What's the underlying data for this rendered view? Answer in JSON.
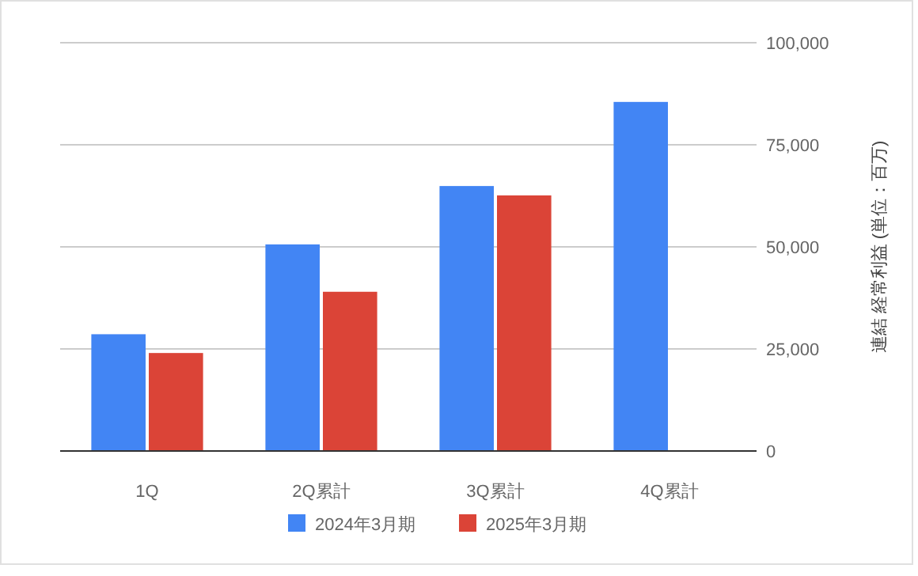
{
  "chart_data": {
    "type": "bar",
    "categories": [
      "1Q",
      "2Q累計",
      "3Q累計",
      "4Q累計"
    ],
    "series": [
      {
        "name": "2024年3月期",
        "color": "#4285f4",
        "values": [
          28600,
          50600,
          64900,
          85500
        ]
      },
      {
        "name": "2025年3月期",
        "color": "#db4437",
        "values": [
          24000,
          39000,
          62600,
          null
        ]
      }
    ],
    "ylabel": "連結 経常利益 (単位：百万)",
    "ylim": [
      0,
      100000
    ],
    "yticks": [
      {
        "value": 0,
        "label": "0"
      },
      {
        "value": 25000,
        "label": "25,000"
      },
      {
        "value": 50000,
        "label": "50,000"
      },
      {
        "value": 75000,
        "label": "75,000"
      },
      {
        "value": 100000,
        "label": "100,000"
      }
    ],
    "grid": "y",
    "legend": "bottom"
  }
}
